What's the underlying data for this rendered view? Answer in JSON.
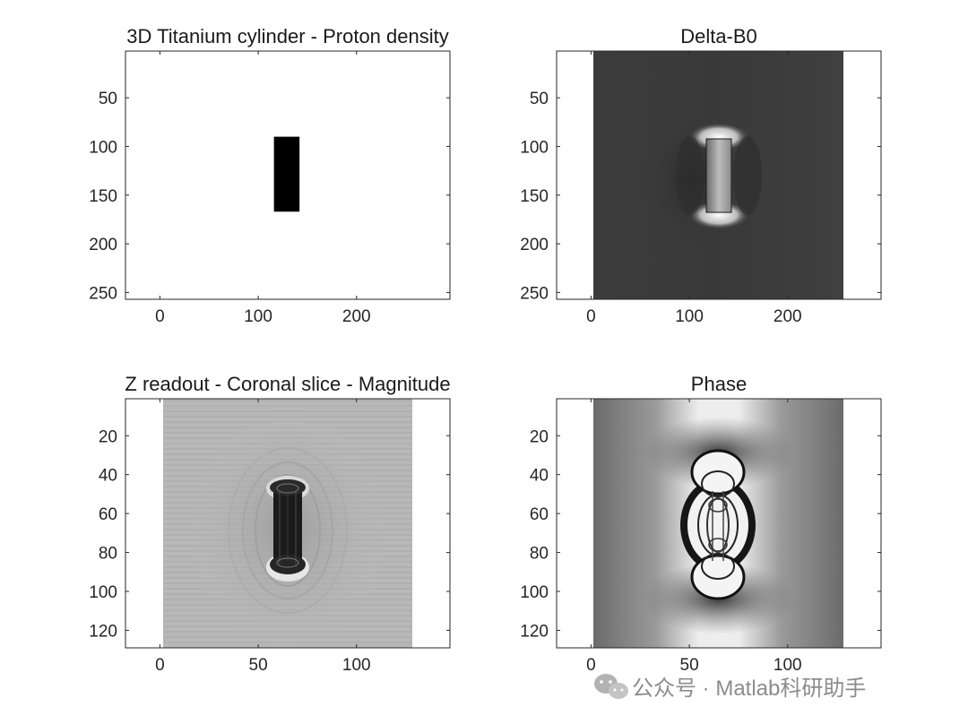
{
  "chart_data": [
    {
      "type": "image",
      "id": "pd",
      "title": "3D Titanium cylinder - Proton density",
      "xlim": [
        -35,
        295
      ],
      "ylim": [
        257,
        2
      ],
      "xticks": [
        0,
        100,
        200
      ],
      "yticks": [
        50,
        100,
        150,
        200,
        250
      ],
      "image_extent": null,
      "content": "white field with a black rectangular cylinder",
      "object": {
        "x": [
          116,
          142
        ],
        "y": [
          90,
          167
        ]
      }
    },
    {
      "type": "image",
      "id": "db0",
      "title": "Delta-B0",
      "xlim": [
        -35,
        295
      ],
      "ylim": [
        257,
        2
      ],
      "xticks": [
        0,
        100,
        200
      ],
      "yticks": [
        50,
        100,
        150,
        200,
        250
      ],
      "image_extent": {
        "x": [
          0,
          256
        ],
        "y": [
          2,
          257
        ]
      },
      "content": "dark grey field map, bright cylinder with dipole lobes",
      "object": {
        "x": [
          116,
          142
        ],
        "y": [
          90,
          167
        ]
      }
    },
    {
      "type": "image",
      "id": "mag",
      "title": "Z readout - Coronal slice - Magnitude",
      "xlim": [
        -17.5,
        147.5
      ],
      "ylim": [
        129,
        1
      ],
      "xticks": [
        0,
        50,
        100
      ],
      "yticks": [
        20,
        40,
        60,
        80,
        100,
        120
      ],
      "image_extent": {
        "x": [
          1,
          128
        ],
        "y": [
          1,
          129
        ]
      },
      "content": "grey magnitude image, dark dumbbell artifact with ringing",
      "object": {
        "x": [
          56,
          73
        ],
        "y": [
          42,
          93
        ]
      }
    },
    {
      "type": "image",
      "id": "phase",
      "title": "Phase",
      "xlim": [
        -17.5,
        147.5
      ],
      "ylim": [
        129,
        1
      ],
      "xticks": [
        0,
        50,
        100
      ],
      "yticks": [
        20,
        40,
        60,
        80,
        100,
        120
      ],
      "image_extent": {
        "x": [
          1,
          128
        ],
        "y": [
          1,
          129
        ]
      },
      "content": "grey phase image with wrapped black/white rings around the object",
      "object": {
        "x": [
          56,
          73
        ],
        "y": [
          42,
          93
        ]
      }
    }
  ],
  "watermark": {
    "icon": "wechat-icon",
    "text": "公众号 · Matlab科研助手"
  }
}
